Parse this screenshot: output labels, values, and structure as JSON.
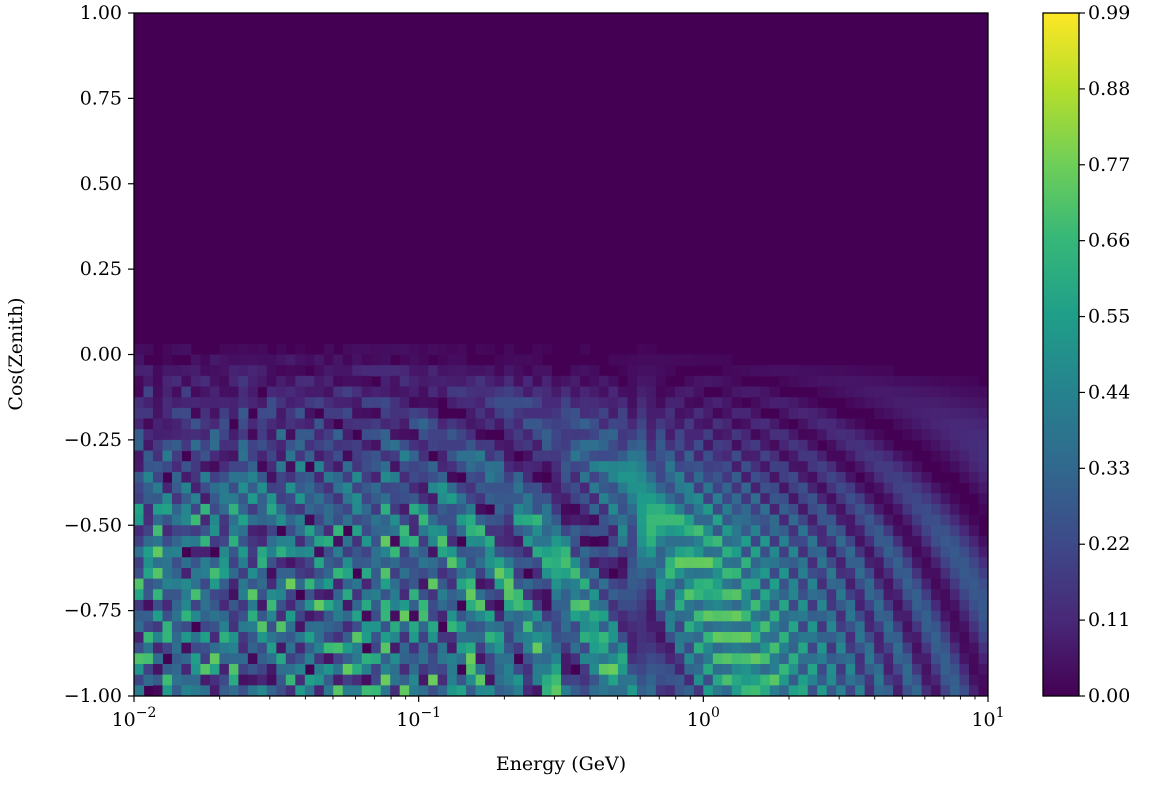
{
  "chart_data": {
    "type": "heatmap",
    "title": "",
    "xlabel": "Energy (GeV)",
    "ylabel": "Cos(Zenith)",
    "x_scale": "log",
    "xlim": [
      0.01,
      10
    ],
    "ylim": [
      -1.0,
      1.0
    ],
    "x_ticks": [
      {
        "value": 0.01,
        "base": "10",
        "exp": "−2"
      },
      {
        "value": 0.1,
        "base": "10",
        "exp": "−1"
      },
      {
        "value": 1,
        "base": "10",
        "exp": "0"
      },
      {
        "value": 10,
        "base": "10",
        "exp": "1"
      }
    ],
    "y_ticks": [
      {
        "value": 1.0,
        "label": "1.00"
      },
      {
        "value": 0.75,
        "label": "0.75"
      },
      {
        "value": 0.5,
        "label": "0.50"
      },
      {
        "value": 0.25,
        "label": "0.25"
      },
      {
        "value": 0.0,
        "label": "0.00"
      },
      {
        "value": -0.25,
        "label": "−0.25"
      },
      {
        "value": -0.5,
        "label": "−0.50"
      },
      {
        "value": -0.75,
        "label": "−0.75"
      },
      {
        "value": -1.0,
        "label": "−1.00"
      }
    ],
    "colormap": "viridis",
    "colorbar": {
      "range": [
        0.0,
        0.99
      ],
      "ticks": [
        {
          "value": 0.99,
          "label": "0.99"
        },
        {
          "value": 0.88,
          "label": "0.88"
        },
        {
          "value": 0.77,
          "label": "0.77"
        },
        {
          "value": 0.66,
          "label": "0.66"
        },
        {
          "value": 0.55,
          "label": "0.55"
        },
        {
          "value": 0.44,
          "label": "0.44"
        },
        {
          "value": 0.33,
          "label": "0.33"
        },
        {
          "value": 0.22,
          "label": "0.22"
        },
        {
          "value": 0.11,
          "label": "0.11"
        },
        {
          "value": 0.0,
          "label": "0.00"
        }
      ]
    },
    "grid": false,
    "legend": "none"
  }
}
